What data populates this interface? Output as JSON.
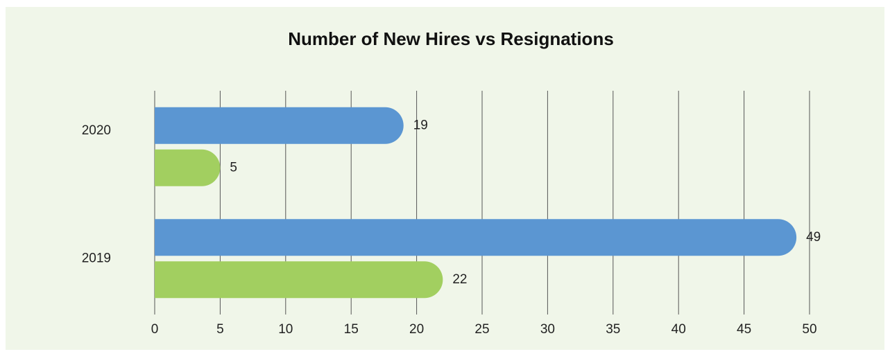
{
  "chart_data": {
    "type": "bar",
    "orientation": "horizontal",
    "title": "Number of New Hires vs Resignations",
    "categories": [
      "2020",
      "2019"
    ],
    "series": [
      {
        "color": "#5b96d2",
        "values": [
          19,
          49
        ]
      },
      {
        "color": "#a2cf60",
        "values": [
          5,
          22
        ]
      }
    ],
    "xlim": [
      0,
      50
    ],
    "xticks": [
      0,
      5,
      10,
      15,
      20,
      25,
      30,
      35,
      40,
      45,
      50
    ],
    "grid": true
  }
}
